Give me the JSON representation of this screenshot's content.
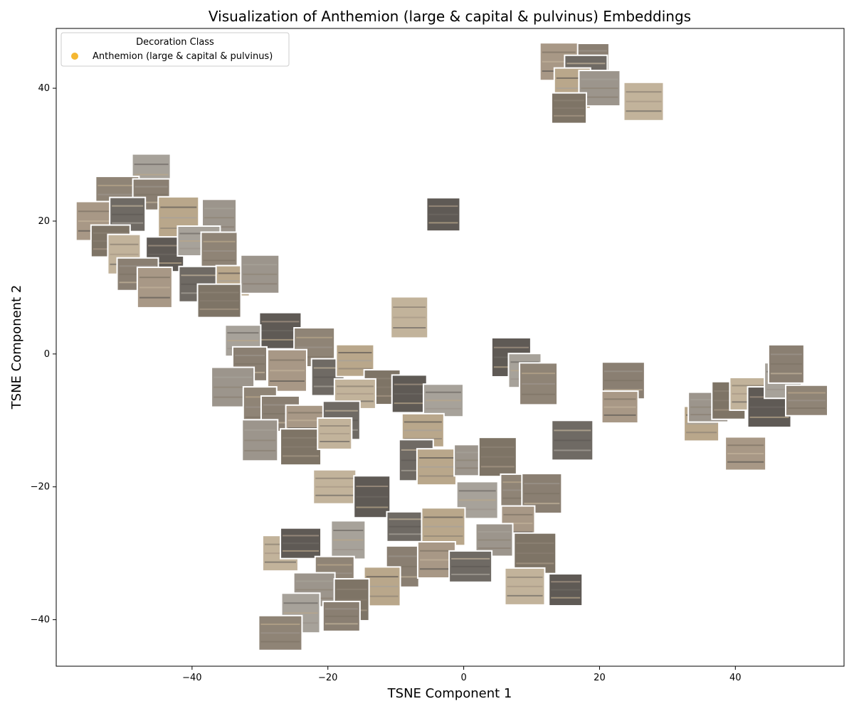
{
  "chart_data": {
    "type": "scatter",
    "title": "Visualization of Anthemion (large & capital & pulvinus) Embeddings",
    "xlabel": "TSNE Component 1",
    "ylabel": "TSNE Component 2",
    "xlim": [
      -60,
      56
    ],
    "ylim": [
      -47,
      49
    ],
    "x_ticks": [
      -40,
      -20,
      0,
      20,
      40
    ],
    "y_ticks": [
      -40,
      -20,
      0,
      20,
      40
    ],
    "x_tick_labels": [
      "−40",
      "−20",
      "0",
      "20",
      "40"
    ],
    "y_tick_labels": [
      "−40",
      "−20",
      "0",
      "20",
      "40"
    ],
    "grid": false,
    "legend": {
      "title": "Decoration Class",
      "placement": "top-left",
      "entries": [
        {
          "label": "Anthemion (large & capital & pulvinus)",
          "color": "#f5b731"
        }
      ]
    },
    "marker": "image-thumbnail",
    "colors": [
      "#8a7f72",
      "#a89886",
      "#6f6a64",
      "#b9a78b",
      "#9c958c",
      "#7e7466",
      "#c2b39b",
      "#5f5a55",
      "#a7a29a",
      "#8f8476"
    ],
    "points": [
      {
        "x": 19,
        "y": 44.5
      },
      {
        "x": 14,
        "y": 44
      },
      {
        "x": 18,
        "y": 42.5
      },
      {
        "x": 16,
        "y": 40
      },
      {
        "x": 20,
        "y": 40
      },
      {
        "x": 15.5,
        "y": 37
      },
      {
        "x": 26.5,
        "y": 38
      },
      {
        "x": -3,
        "y": 21
      },
      {
        "x": -46,
        "y": 27
      },
      {
        "x": -51,
        "y": 24
      },
      {
        "x": -46,
        "y": 24
      },
      {
        "x": -54,
        "y": 20
      },
      {
        "x": -49.5,
        "y": 21
      },
      {
        "x": -42,
        "y": 20.5
      },
      {
        "x": -36,
        "y": 20.5
      },
      {
        "x": -52,
        "y": 17
      },
      {
        "x": -50,
        "y": 15
      },
      {
        "x": -44,
        "y": 15
      },
      {
        "x": -39,
        "y": 17
      },
      {
        "x": -36,
        "y": 15.5
      },
      {
        "x": -48,
        "y": 12
      },
      {
        "x": -45.5,
        "y": 10
      },
      {
        "x": -39,
        "y": 10.5
      },
      {
        "x": -34,
        "y": 11
      },
      {
        "x": -30,
        "y": 12
      },
      {
        "x": -36,
        "y": 8
      },
      {
        "x": -8,
        "y": 5.5
      },
      {
        "x": -27,
        "y": 3.5
      },
      {
        "x": -32.5,
        "y": 2
      },
      {
        "x": -22,
        "y": 1
      },
      {
        "x": -31.5,
        "y": -1.5
      },
      {
        "x": -26,
        "y": -2.5
      },
      {
        "x": -20,
        "y": -3.5
      },
      {
        "x": -16,
        "y": -1
      },
      {
        "x": -34,
        "y": -5
      },
      {
        "x": -12,
        "y": -5
      },
      {
        "x": -16,
        "y": -6
      },
      {
        "x": -8,
        "y": -6
      },
      {
        "x": -3,
        "y": -7
      },
      {
        "x": -30,
        "y": -8
      },
      {
        "x": -27,
        "y": -9
      },
      {
        "x": -23,
        "y": -10
      },
      {
        "x": -18,
        "y": -10
      },
      {
        "x": -6,
        "y": -11.5
      },
      {
        "x": -30,
        "y": -13
      },
      {
        "x": -24,
        "y": -14
      },
      {
        "x": -19,
        "y": -12
      },
      {
        "x": 7,
        "y": -0.5
      },
      {
        "x": 9,
        "y": -2.5
      },
      {
        "x": 11,
        "y": -4.5
      },
      {
        "x": 23.5,
        "y": -4
      },
      {
        "x": 23,
        "y": -8
      },
      {
        "x": 16,
        "y": -13
      },
      {
        "x": 35,
        "y": -10.5
      },
      {
        "x": 36,
        "y": -8
      },
      {
        "x": 39,
        "y": -7
      },
      {
        "x": 42,
        "y": -6
      },
      {
        "x": 45,
        "y": -8
      },
      {
        "x": 47,
        "y": -4
      },
      {
        "x": 50.5,
        "y": -7
      },
      {
        "x": 47.5,
        "y": -1.5
      },
      {
        "x": 41.5,
        "y": -15
      },
      {
        "x": -7,
        "y": -16
      },
      {
        "x": -4,
        "y": -17
      },
      {
        "x": 1,
        "y": -16
      },
      {
        "x": 5,
        "y": -15.5
      },
      {
        "x": -19,
        "y": -20
      },
      {
        "x": -13.5,
        "y": -21.5
      },
      {
        "x": 2,
        "y": -22
      },
      {
        "x": 8,
        "y": -20.5
      },
      {
        "x": 11.5,
        "y": -21
      },
      {
        "x": 8,
        "y": -25.5
      },
      {
        "x": -8.5,
        "y": -26
      },
      {
        "x": -3,
        "y": -26
      },
      {
        "x": 4.5,
        "y": -28
      },
      {
        "x": 10.5,
        "y": -30
      },
      {
        "x": -27,
        "y": -30
      },
      {
        "x": -24,
        "y": -28.5
      },
      {
        "x": -17,
        "y": -28
      },
      {
        "x": -19,
        "y": -33
      },
      {
        "x": -9,
        "y": -32
      },
      {
        "x": -4,
        "y": -31
      },
      {
        "x": 1,
        "y": -32
      },
      {
        "x": -12,
        "y": -35
      },
      {
        "x": -22,
        "y": -35.5
      },
      {
        "x": -16.5,
        "y": -37
      },
      {
        "x": 9,
        "y": -35
      },
      {
        "x": 15,
        "y": -35.5
      },
      {
        "x": -24,
        "y": -39
      },
      {
        "x": -27,
        "y": -42
      },
      {
        "x": -18,
        "y": -39.5
      }
    ]
  }
}
